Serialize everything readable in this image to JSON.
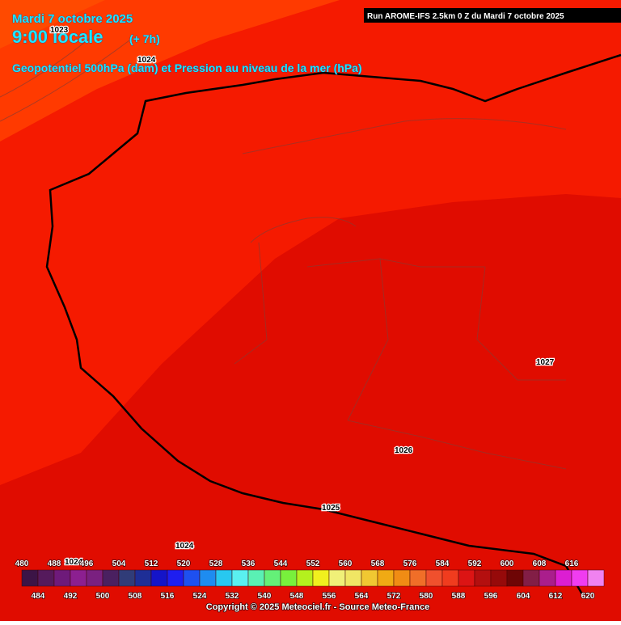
{
  "header": {
    "date": "Mardi 7 octobre 2025",
    "time": "9:00 locale",
    "offset": "(+ 7h)",
    "subtitle": "Geopotentiel 500hPa (dam) et Pression au niveau de la mer (hPa)",
    "run": "Run AROME-IFS 2.5km 0 Z du Mardi 7 octobre 2025"
  },
  "isobar_labels": [
    "1023",
    "1024",
    "1027",
    "1026",
    "1025",
    "1024",
    "1024"
  ],
  "scale": {
    "top": [
      480,
      488,
      496,
      504,
      512,
      520,
      528,
      536,
      544,
      552,
      560,
      568,
      576,
      584,
      592,
      600,
      608,
      616
    ],
    "bottom": [
      484,
      492,
      500,
      508,
      516,
      524,
      532,
      540,
      548,
      556,
      564,
      572,
      580,
      588,
      596,
      604,
      612,
      620
    ],
    "colors": [
      "#3c1446",
      "#551a5c",
      "#6e1a7a",
      "#8c1f90",
      "#7a2080",
      "#4a2060",
      "#303c78",
      "#1e2e96",
      "#1414c8",
      "#1e1ef0",
      "#1e50f0",
      "#1e8cf0",
      "#28c8f0",
      "#5af0f0",
      "#5af0b4",
      "#64f078",
      "#78f03c",
      "#b4f01e",
      "#f0f01e",
      "#f0f078",
      "#f0e664",
      "#f0c832",
      "#f0aa14",
      "#f08c14",
      "#f06e28",
      "#f0502d",
      "#f03c1e",
      "#dc1414",
      "#b40f0f",
      "#960a0a",
      "#6e0505",
      "#821e46",
      "#aa1e8c",
      "#dc1ed2",
      "#f03cf0",
      "#f082f0"
    ]
  },
  "footer": {
    "copyright": "Copyright © 2025 Meteociel.fr - Source Meteo-France"
  }
}
